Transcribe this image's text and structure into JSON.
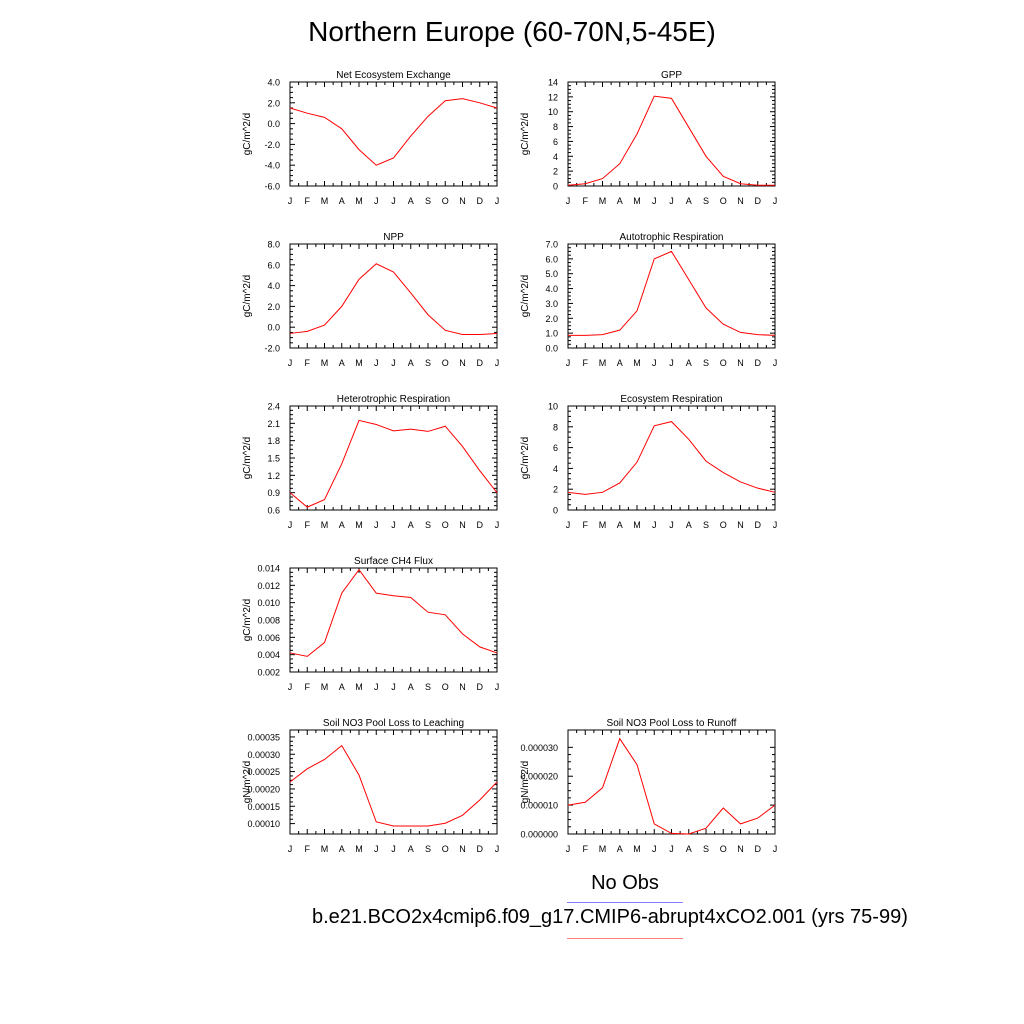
{
  "title": "Northern Europe (60-70N,5-45E)",
  "legend": {
    "obs_label": "No Obs",
    "obs_color": "#7f7fff",
    "model_label": "b.e21.BCO2x4cmip6.f09_g17.CMIP6-abrupt4xCO2.001 (yrs 75-99)",
    "model_color": "#ff7f7f"
  },
  "line_color": "#ff0000",
  "chart_data": [
    {
      "type": "line",
      "title": "Net Ecosystem Exchange",
      "ylabel": "gC/m^2/d",
      "x": [
        "J",
        "F",
        "M",
        "A",
        "M",
        "J",
        "J",
        "A",
        "S",
        "O",
        "N",
        "D",
        "J"
      ],
      "ylim": [
        -6,
        4
      ],
      "yticks": [
        "4.0",
        "2.0",
        "0.0",
        "-2.0",
        "-4.0",
        "-6.0"
      ],
      "ytick_values": [
        4,
        2,
        0,
        -2,
        -4,
        -6
      ],
      "series": [
        {
          "values": [
            1.5,
            1.0,
            0.6,
            -0.5,
            -2.5,
            -4.0,
            -3.3,
            -1.2,
            0.7,
            2.2,
            2.4,
            2.0,
            1.5
          ]
        }
      ]
    },
    {
      "type": "line",
      "title": "GPP",
      "ylabel": "gC/m^2/d",
      "x": [
        "J",
        "F",
        "M",
        "A",
        "M",
        "J",
        "J",
        "A",
        "S",
        "O",
        "N",
        "D",
        "J"
      ],
      "ylim": [
        0,
        14
      ],
      "yticks": [
        "14",
        "12",
        "10",
        "8",
        "6",
        "4",
        "2",
        "0"
      ],
      "ytick_values": [
        14,
        12,
        10,
        8,
        6,
        4,
        2,
        0
      ],
      "series": [
        {
          "values": [
            0.1,
            0.3,
            1.0,
            3.0,
            7.0,
            12.1,
            11.8,
            7.9,
            4.0,
            1.3,
            0.3,
            0.1,
            0.1
          ]
        }
      ]
    },
    {
      "type": "line",
      "title": "NPP",
      "ylabel": "gC/m^2/d",
      "x": [
        "J",
        "F",
        "M",
        "A",
        "M",
        "J",
        "J",
        "A",
        "S",
        "O",
        "N",
        "D",
        "J"
      ],
      "ylim": [
        -2,
        8
      ],
      "yticks": [
        "8.0",
        "6.0",
        "4.0",
        "2.0",
        "0.0",
        "-2.0"
      ],
      "ytick_values": [
        8,
        6,
        4,
        2,
        0,
        -2
      ],
      "series": [
        {
          "values": [
            -0.6,
            -0.4,
            0.2,
            2.0,
            4.6,
            6.1,
            5.3,
            3.3,
            1.2,
            -0.3,
            -0.7,
            -0.7,
            -0.6
          ]
        }
      ]
    },
    {
      "type": "line",
      "title": "Autotrophic Respiration",
      "ylabel": "gC/m^2/d",
      "x": [
        "J",
        "F",
        "M",
        "A",
        "M",
        "J",
        "J",
        "A",
        "S",
        "O",
        "N",
        "D",
        "J"
      ],
      "ylim": [
        0,
        7
      ],
      "yticks": [
        "7.0",
        "6.0",
        "5.0",
        "4.0",
        "3.0",
        "2.0",
        "1.0",
        "0.0"
      ],
      "ytick_values": [
        7,
        6,
        5,
        4,
        3,
        2,
        1,
        0
      ],
      "series": [
        {
          "values": [
            0.85,
            0.85,
            0.9,
            1.2,
            2.5,
            6.0,
            6.5,
            4.6,
            2.7,
            1.6,
            1.05,
            0.9,
            0.85
          ]
        }
      ]
    },
    {
      "type": "line",
      "title": "Heterotrophic Respiration",
      "ylabel": "gC/m^2/d",
      "x": [
        "J",
        "F",
        "M",
        "A",
        "M",
        "J",
        "J",
        "A",
        "S",
        "O",
        "N",
        "D",
        "J"
      ],
      "ylim": [
        0.6,
        2.4
      ],
      "yticks": [
        "2.4",
        "2.1",
        "1.8",
        "1.5",
        "1.2",
        "0.9",
        "0.6"
      ],
      "ytick_values": [
        2.4,
        2.1,
        1.8,
        1.5,
        1.2,
        0.9,
        0.6
      ],
      "series": [
        {
          "values": [
            0.9,
            0.65,
            0.78,
            1.4,
            2.15,
            2.08,
            1.97,
            2.0,
            1.96,
            2.05,
            1.7,
            1.28,
            0.9
          ]
        }
      ]
    },
    {
      "type": "line",
      "title": "Ecosystem Respiration",
      "ylabel": "gC/m^2/d",
      "x": [
        "J",
        "F",
        "M",
        "A",
        "M",
        "J",
        "J",
        "A",
        "S",
        "O",
        "N",
        "D",
        "J"
      ],
      "ylim": [
        0,
        10
      ],
      "yticks": [
        "10",
        "8",
        "6",
        "4",
        "2",
        "0"
      ],
      "ytick_values": [
        10,
        8,
        6,
        4,
        2,
        0
      ],
      "series": [
        {
          "values": [
            1.7,
            1.5,
            1.7,
            2.6,
            4.6,
            8.1,
            8.5,
            6.8,
            4.7,
            3.6,
            2.7,
            2.1,
            1.7
          ]
        }
      ]
    },
    {
      "type": "line",
      "title": "Surface CH4 Flux",
      "ylabel": "gC/m^2/d",
      "x": [
        "J",
        "F",
        "M",
        "A",
        "M",
        "J",
        "J",
        "A",
        "S",
        "O",
        "N",
        "D",
        "J"
      ],
      "ylim": [
        0.002,
        0.014
      ],
      "yticks": [
        "0.014",
        "0.012",
        "0.010",
        "0.008",
        "0.006",
        "0.004",
        "0.002"
      ],
      "ytick_values": [
        0.014,
        0.012,
        0.01,
        0.008,
        0.006,
        0.004,
        0.002
      ],
      "series": [
        {
          "values": [
            0.0042,
            0.0038,
            0.0054,
            0.0111,
            0.0138,
            0.0111,
            0.0108,
            0.0106,
            0.0089,
            0.0086,
            0.0064,
            0.0049,
            0.0042
          ]
        }
      ]
    },
    {
      "type": "line",
      "title": "Soil NO3 Pool Loss to Leaching",
      "ylabel": "gN/m^2/d",
      "x": [
        "J",
        "F",
        "M",
        "A",
        "M",
        "J",
        "J",
        "A",
        "S",
        "O",
        "N",
        "D",
        "J"
      ],
      "ylim": [
        7e-05,
        0.00037
      ],
      "yticks": [
        "0.00035",
        "0.00030",
        "0.00025",
        "0.00020",
        "0.00015",
        "0.00010"
      ],
      "ytick_values": [
        0.00035,
        0.0003,
        0.00025,
        0.0002,
        0.00015,
        0.0001
      ],
      "series": [
        {
          "values": [
            0.00022,
            0.000258,
            0.000285,
            0.000325,
            0.00024,
            0.000105,
            9.3e-05,
            9.3e-05,
            9.3e-05,
            0.000101,
            0.000124,
            0.000168,
            0.00022
          ]
        }
      ]
    },
    {
      "type": "line",
      "title": "Soil NO3 Pool Loss to Runoff",
      "ylabel": "gN/m^2/d",
      "x": [
        "J",
        "F",
        "M",
        "A",
        "M",
        "J",
        "J",
        "A",
        "S",
        "O",
        "N",
        "D",
        "J"
      ],
      "ylim": [
        0,
        3.6e-05
      ],
      "yticks": [
        "0.000030",
        "0.000020",
        "0.000010",
        "0.000000"
      ],
      "ytick_values": [
        3e-05,
        2e-05,
        1e-05,
        0.0
      ],
      "series": [
        {
          "values": [
            1e-05,
            1.1e-05,
            1.6e-05,
            3.3e-05,
            2.4e-05,
            3.5e-06,
            2e-07,
            0.0,
            2e-06,
            9e-06,
            3.5e-06,
            5.5e-06,
            1e-05
          ]
        }
      ]
    }
  ]
}
